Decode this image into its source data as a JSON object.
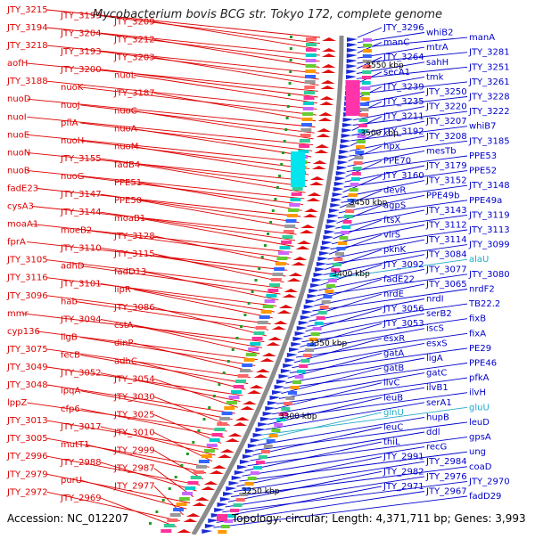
{
  "title": "Mycobacterium bovis BCG str. Tokyo 172, complete genome",
  "footer": {
    "accession": "Accession: NC_012207",
    "topology": "Topology: circular; Length: 4,371,711 bp; Genes: 3,993"
  },
  "colors": {
    "left_genes": "#dd0000",
    "right_genes": "#0000cc",
    "rna_genes": "#22aacc",
    "backbone": "#888888",
    "tick": "#229922"
  },
  "position_labels": [
    "3550 kbp",
    "3500 kbp",
    "3450 kbp",
    "3400 kbp",
    "3350 kbp",
    "3300 kbp",
    "3250 kbp"
  ],
  "left_labels": [
    "JTY_3215",
    "JTY_3199",
    "JTY_3209",
    "JTY_3194",
    "JTY_3204",
    "JTY_3212",
    "JTY_3218",
    "JTY_3193",
    "JTY_3203",
    "aofH",
    "JTY_3200",
    "nuoL",
    "JTY_3188",
    "nuoK",
    "JTY_3187",
    "nuoD",
    "nuoJ",
    "nuoC",
    "nuoI",
    "pflA",
    "nuoA",
    "nuoE",
    "nuoH",
    "nuoM",
    "nuoN",
    "JTY_3155",
    "fadB4",
    "nuoB",
    "nuoG",
    "PPE51",
    "fadE23",
    "JTY_3147",
    "PPE50",
    "cysA3",
    "JTY_3144",
    "moaB1",
    "moaA1",
    "moeB2",
    "JTY_3128",
    "fprA",
    "JTY_3110",
    "JTY_3115",
    "JTY_3105",
    "adhD",
    "fadD13",
    "JTY_3116",
    "JTY_3101",
    "lipR",
    "JTY_3096",
    "hab",
    "JTY_3086",
    "mmr",
    "JTY_3094",
    "cstA",
    "cyp136",
    "ligB",
    "dinP",
    "JTY_3075",
    "fecB",
    "adhC",
    "JTY_3049",
    "JTY_3052",
    "JTY_3054",
    "JTY_3048",
    "lpqA",
    "JTY_3030",
    "lppZ",
    "cfp6",
    "JTY_3025",
    "JTY_3013",
    "JTY_3017",
    "JTY_3010",
    "JTY_3005",
    "mutT1",
    "JTY_2999",
    "JTY_2996",
    "JTY_2988",
    "JTY_2987",
    "JTY_2979",
    "purU",
    "JTY_2977",
    "JTY_2972",
    "JTY_2969"
  ],
  "right_labels": [
    "JTY_3296",
    "whiB2",
    "manA",
    "manC",
    "mtrA",
    "JTY_3281",
    "JTY_3264",
    "sahH",
    "JTY_3251",
    "secA1",
    "tmk",
    "JTY_3261",
    "JTY_3239",
    "JTY_3250",
    "JTY_3228",
    "JTY_3235",
    "JTY_3220",
    "JTY_3222",
    "JTY_3211",
    "JTY_3207",
    "whiB7",
    "JTY_3192",
    "JTY_3208",
    "JTY_3185",
    "hpx",
    "mesTb",
    "PPE53",
    "PPE70",
    "JTY_3179",
    "PPE52",
    "JTY_3160",
    "JTY_3152",
    "JTY_3148",
    "devR",
    "PPE49b",
    "PPE49a",
    "agpS",
    "JTY_3143",
    "JTY_3119",
    "ftsX",
    "JTY_3112",
    "JTY_3113",
    "virS",
    "JTY_3114",
    "JTY_3099",
    "pknK",
    "JTY_3084",
    "alaU",
    "JTY_3092",
    "JTY_3077",
    "JTY_3080",
    "fadE22",
    "JTY_3065",
    "nrdF2",
    "nrdE",
    "nrdI",
    "TB22.2",
    "JTY_3056",
    "serB2",
    "fixB",
    "JTY_3053",
    "iscS",
    "fixA",
    "esxR",
    "esxS",
    "PE29",
    "gatA",
    "ligA",
    "PPE46",
    "gatB",
    "gatC",
    "pfkA",
    "ilvC",
    "ilvB1",
    "ilvH",
    "leuB",
    "serA1",
    "gluU",
    "glnU",
    "hupB",
    "leuD",
    "leuC",
    "ddl",
    "gpsA",
    "thiL",
    "recG",
    "ung",
    "JTY_2991",
    "JTY_2984",
    "coaD",
    "JTY_2982",
    "JTY_2976",
    "JTY_2970",
    "JTY_2971",
    "JTY_2967",
    "fadD29"
  ]
}
